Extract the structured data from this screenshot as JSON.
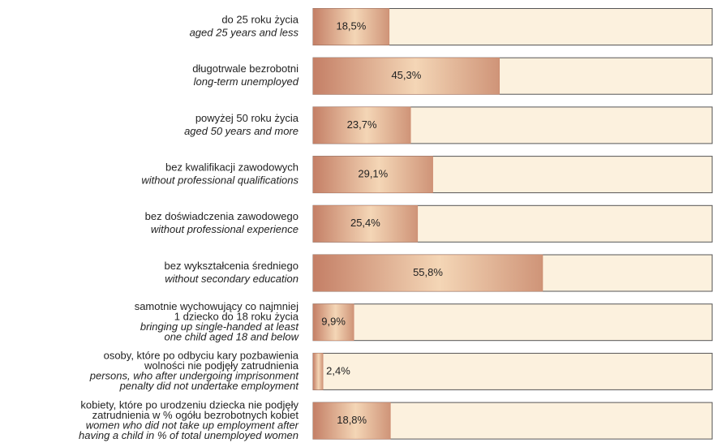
{
  "chart_data": {
    "type": "barh",
    "categories": [
      {
        "pl": [
          "do 25 roku życia"
        ],
        "en": [
          "aged 25 years and less"
        ]
      },
      {
        "pl": [
          "długotrwale bezrobotni"
        ],
        "en": [
          "long-term unemployed"
        ]
      },
      {
        "pl": [
          "powyżej 50 roku życia"
        ],
        "en": [
          "aged 50 years and more"
        ]
      },
      {
        "pl": [
          "bez kwalifikacji zawodowych"
        ],
        "en": [
          "without professional qualifications"
        ]
      },
      {
        "pl": [
          "bez doświadczenia zawodowego"
        ],
        "en": [
          "without professional experience"
        ]
      },
      {
        "pl": [
          "bez wykształcenia średniego"
        ],
        "en": [
          "without secondary education"
        ]
      },
      {
        "pl": [
          "samotnie wychowujący co najmniej",
          "1 dziecko do 18 roku życia"
        ],
        "en": [
          "bringing up single-handed at least",
          "one child aged 18 and below"
        ]
      },
      {
        "pl": [
          "osoby, które po odbyciu kary pozbawienia",
          "wolności nie podjęły zatrudnienia"
        ],
        "en": [
          "persons, who after undergoing imprisonment",
          "penalty did not undertake employment"
        ]
      },
      {
        "pl": [
          "kobiety, które po urodzeniu dziecka nie podjęły",
          "zatrudnienia w % ogółu bezrobotnych kobiet"
        ],
        "en": [
          "women who did not take up employment after",
          "having a child in % of total unemployed women"
        ]
      }
    ],
    "values": [
      18.5,
      45.3,
      23.7,
      29.1,
      25.4,
      55.8,
      9.9,
      2.4,
      18.8
    ],
    "value_labels": [
      "18,5%",
      "45,3%",
      "23,7%",
      "29,1%",
      "25,4%",
      "55,8%",
      "9,9%",
      "2,4%",
      "18,8%"
    ],
    "xlim": [
      0,
      97
    ],
    "color": "#c98468"
  }
}
